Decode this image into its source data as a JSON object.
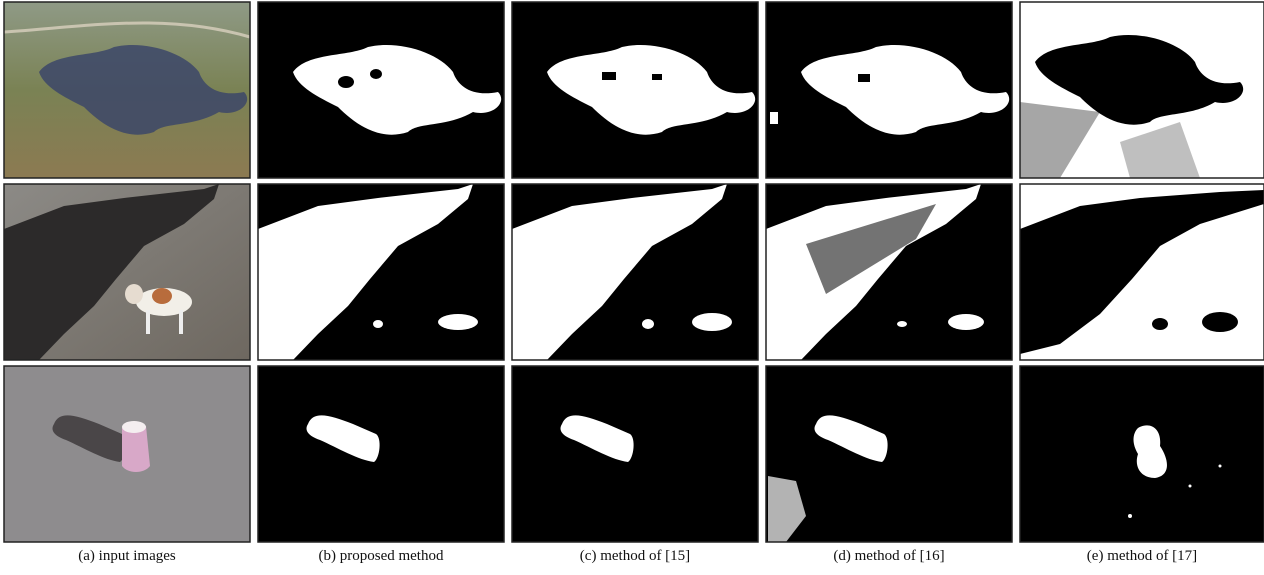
{
  "figure": {
    "captions": [
      "(a) input images",
      "(b) proposed method",
      "(c) method of [15]",
      "(d) method of [16]",
      "(e) method of [17]"
    ]
  }
}
